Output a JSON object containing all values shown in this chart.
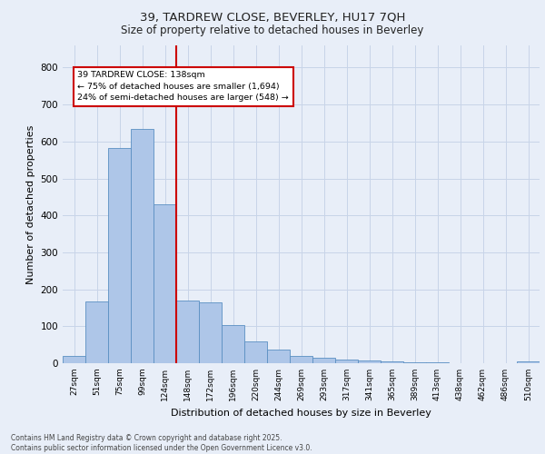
{
  "title_line1": "39, TARDREW CLOSE, BEVERLEY, HU17 7QH",
  "title_line2": "Size of property relative to detached houses in Beverley",
  "xlabel": "Distribution of detached houses by size in Beverley",
  "ylabel": "Number of detached properties",
  "footer_line1": "Contains HM Land Registry data © Crown copyright and database right 2025.",
  "footer_line2": "Contains public sector information licensed under the Open Government Licence v3.0.",
  "categories": [
    "27sqm",
    "51sqm",
    "75sqm",
    "99sqm",
    "124sqm",
    "148sqm",
    "172sqm",
    "196sqm",
    "220sqm",
    "244sqm",
    "269sqm",
    "293sqm",
    "317sqm",
    "341sqm",
    "365sqm",
    "389sqm",
    "413sqm",
    "438sqm",
    "462sqm",
    "486sqm",
    "510sqm"
  ],
  "values": [
    20,
    168,
    582,
    635,
    430,
    170,
    165,
    102,
    58,
    36,
    20,
    14,
    10,
    8,
    6,
    3,
    2,
    1,
    0,
    0,
    5
  ],
  "bar_color": "#aec6e8",
  "bar_edge_color": "#5a8fc2",
  "vline_x": 4.5,
  "vline_color": "#cc0000",
  "annotation_title": "39 TARDREW CLOSE: 138sqm",
  "annotation_line1": "← 75% of detached houses are smaller (1,694)",
  "annotation_line2": "24% of semi-detached houses are larger (548) →",
  "annotation_box_color": "#cc0000",
  "annotation_bg_color": "#ffffff",
  "ylim": [
    0,
    860
  ],
  "yticks": [
    0,
    100,
    200,
    300,
    400,
    500,
    600,
    700,
    800
  ],
  "grid_color": "#c8d4e8",
  "bg_color": "#e8eef8",
  "plot_bg_color": "#e8eef8"
}
